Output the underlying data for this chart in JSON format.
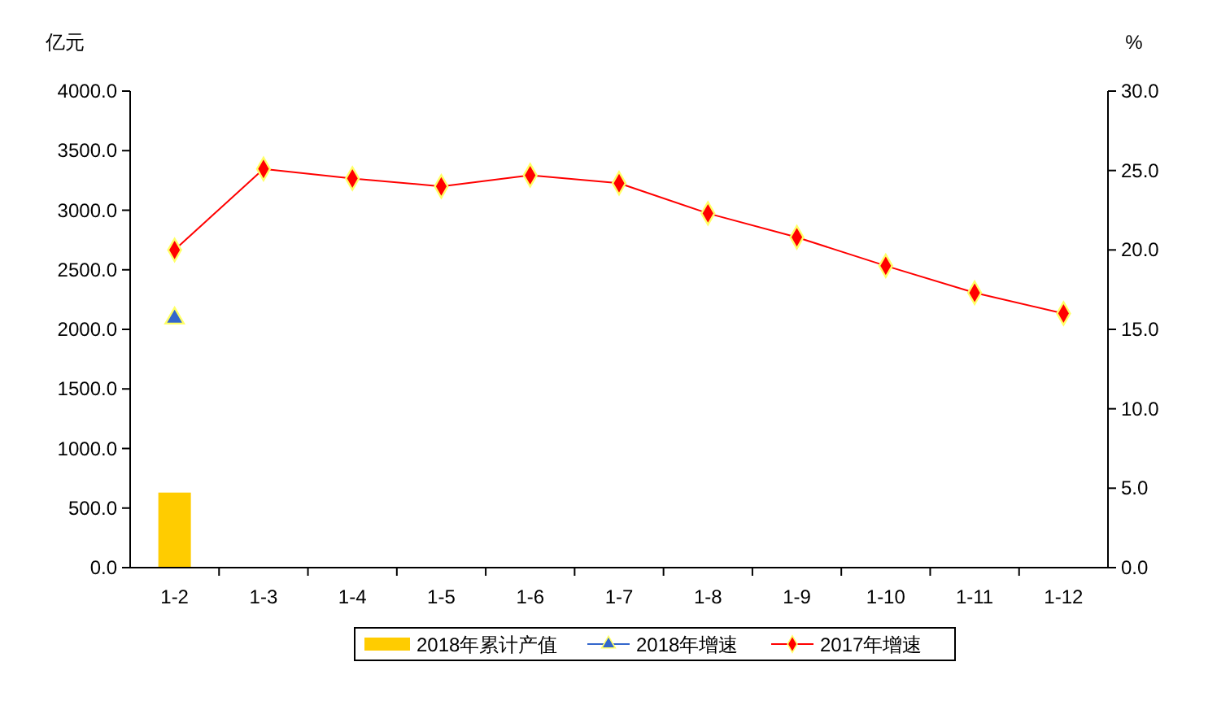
{
  "chart_data": {
    "type": "bar",
    "ylabel": "亿元",
    "y2label": "%",
    "categories": [
      "1-2",
      "1-3",
      "1-4",
      "1-5",
      "1-6",
      "1-7",
      "1-8",
      "1-9",
      "1-10",
      "1-11",
      "1-12"
    ],
    "series": [
      {
        "name": "2018年累计产值",
        "color": "#ffcc00",
        "values": [
          630,
          null,
          null,
          null,
          null,
          null,
          null,
          null,
          null,
          null,
          null
        ]
      },
      {
        "name": "2018年增速",
        "type": "line",
        "axis": "y2",
        "color": "#3366cc",
        "marker": "triangle",
        "values": [
          15.7,
          null,
          null,
          null,
          null,
          null,
          null,
          null,
          null,
          null,
          null
        ]
      },
      {
        "name": "2017年增速",
        "type": "line",
        "axis": "y2",
        "color": "#ff0000",
        "marker": "diamond",
        "values": [
          20.0,
          25.1,
          24.5,
          24.0,
          24.7,
          24.2,
          22.3,
          20.8,
          19.0,
          17.3,
          16.0
        ]
      }
    ],
    "ylim": [
      0,
      4000
    ],
    "yticks": [
      {
        "value": 0,
        "label": "0.0"
      },
      {
        "value": 500,
        "label": "500.0"
      },
      {
        "value": 1000,
        "label": "1000.0"
      },
      {
        "value": 1500,
        "label": "1500.0"
      },
      {
        "value": 2000,
        "label": "2000.0"
      },
      {
        "value": 2500,
        "label": "2500.0"
      },
      {
        "value": 3000,
        "label": "3000.0"
      },
      {
        "value": 3500,
        "label": "3500.0"
      },
      {
        "value": 4000,
        "label": "4000.0"
      }
    ],
    "y2lim": [
      0,
      30
    ],
    "y2ticks": [
      {
        "value": 0,
        "label": "0.0"
      },
      {
        "value": 5,
        "label": "5.0"
      },
      {
        "value": 10,
        "label": "10.0"
      },
      {
        "value": 15,
        "label": "15.0"
      },
      {
        "value": 20,
        "label": "20.0"
      },
      {
        "value": 25,
        "label": "25.0"
      },
      {
        "value": 30,
        "label": "30.0"
      }
    ],
    "grid": false,
    "legend": "bottom"
  }
}
